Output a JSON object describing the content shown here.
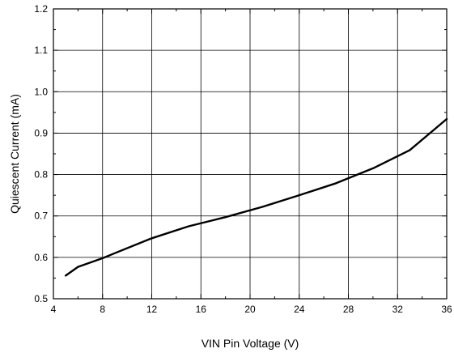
{
  "chart_data": {
    "type": "line",
    "xlabel": "VIN Pin Voltage (V)",
    "ylabel": "Quiescent Current (mA)",
    "xlim": [
      4,
      36
    ],
    "ylim": [
      0.5,
      1.2
    ],
    "xticks": [
      4,
      8,
      12,
      16,
      20,
      24,
      28,
      32,
      36
    ],
    "yticks": [
      0.5,
      0.6,
      0.7,
      0.8,
      0.9,
      1.0,
      1.1,
      1.2
    ],
    "xtick_labels": [
      "4",
      "8",
      "12",
      "16",
      "20",
      "24",
      "28",
      "32",
      "36"
    ],
    "ytick_labels": [
      "0.5",
      "0.6",
      "0.7",
      "0.8",
      "0.9",
      "1.0",
      "1.1",
      "1.2"
    ],
    "grid": true,
    "series": [
      {
        "x": [
          5,
          6,
          8,
          9,
          12,
          15,
          18,
          21,
          24,
          27,
          30,
          33,
          36
        ],
        "y": [
          0.556,
          0.577,
          0.598,
          0.61,
          0.646,
          0.675,
          0.697,
          0.722,
          0.75,
          0.779,
          0.815,
          0.859,
          0.934
        ]
      }
    ]
  }
}
